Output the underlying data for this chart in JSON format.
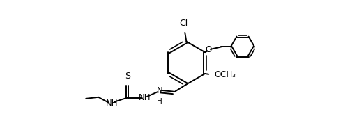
{
  "background_color": "#ffffff",
  "line_color": "#000000",
  "line_width": 1.4,
  "font_size": 8.5,
  "figsize": [
    4.92,
    1.64
  ],
  "dpi": 100,
  "xlim": [
    0.0,
    10.0
  ],
  "ylim": [
    0.0,
    3.8
  ]
}
